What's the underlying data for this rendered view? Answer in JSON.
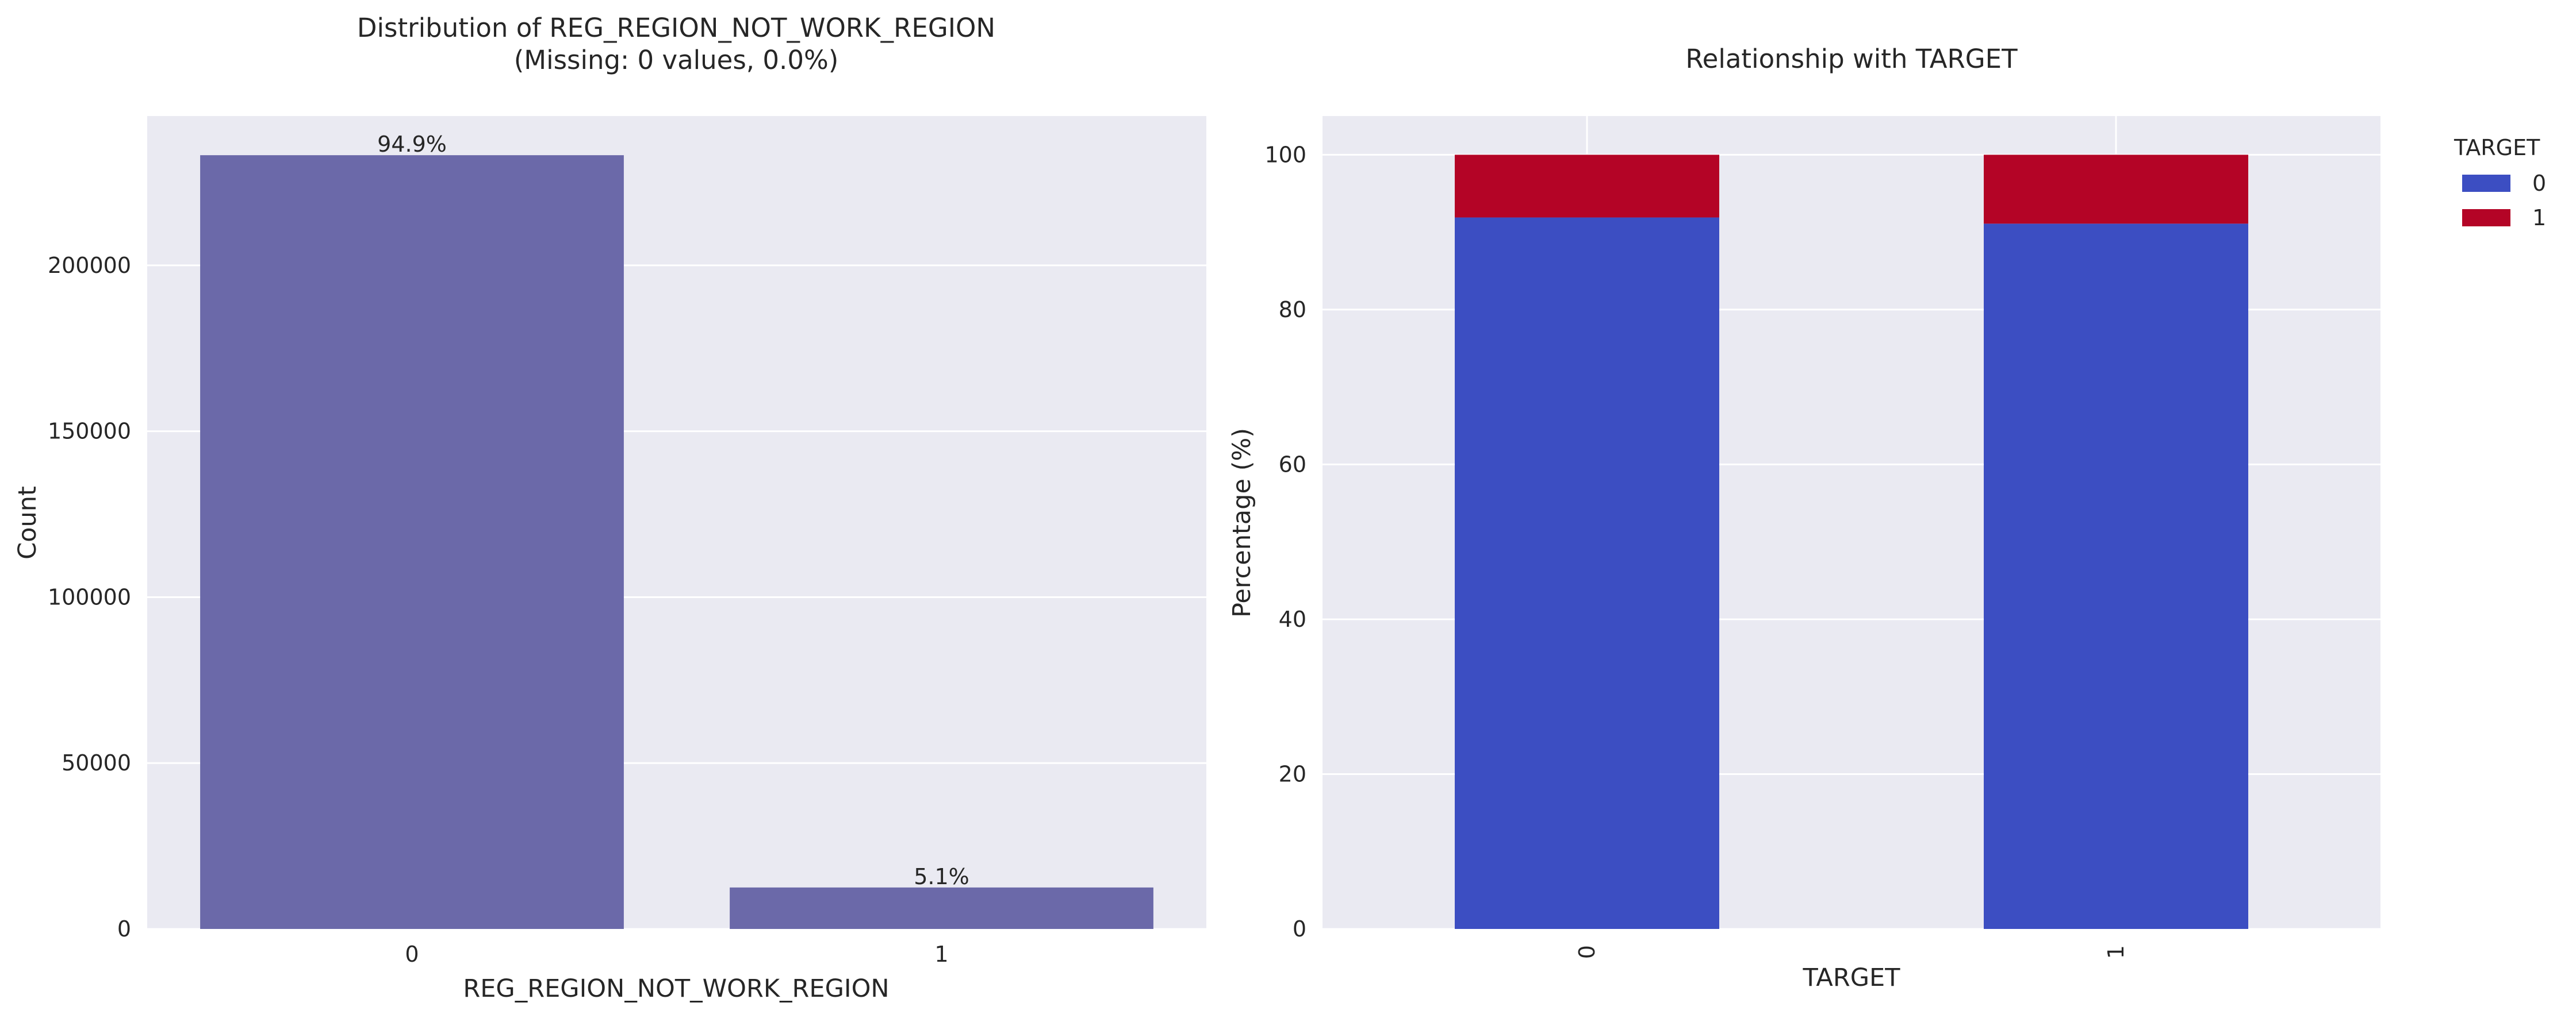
{
  "colors": {
    "background": "#eaeaf2",
    "grid": "#ffffff",
    "left_bar": "#6b69a9",
    "target_0": "#3c4ec2",
    "target_1": "#b40426"
  },
  "chart_data": [
    {
      "type": "bar",
      "title_line1": "Distribution of REG_REGION_NOT_WORK_REGION",
      "title_line2": "(Missing: 0 values, 0.0%)",
      "xlabel": "REG_REGION_NOT_WORK_REGION",
      "ylabel": "Count",
      "categories": [
        "0",
        "1"
      ],
      "values": [
        233200,
        12500
      ],
      "data_labels": [
        "94.9%",
        "5.1%"
      ],
      "yticks": [
        0,
        50000,
        100000,
        150000,
        200000
      ],
      "ylim": [
        0,
        245000
      ],
      "grid": true
    },
    {
      "type": "bar",
      "stacked": true,
      "title": "Relationship with TARGET",
      "xlabel": "TARGET",
      "ylabel": "Percentage (%)",
      "categories": [
        "0",
        "1"
      ],
      "series": [
        {
          "name": "0",
          "values": [
            91.9,
            91.1
          ]
        },
        {
          "name": "1",
          "values": [
            8.1,
            8.9
          ]
        }
      ],
      "yticks": [
        0,
        20,
        40,
        60,
        80,
        100
      ],
      "ylim": [
        0,
        105
      ],
      "grid": true,
      "legend": {
        "title": "TARGET",
        "placement": "outside-top-right"
      }
    }
  ]
}
